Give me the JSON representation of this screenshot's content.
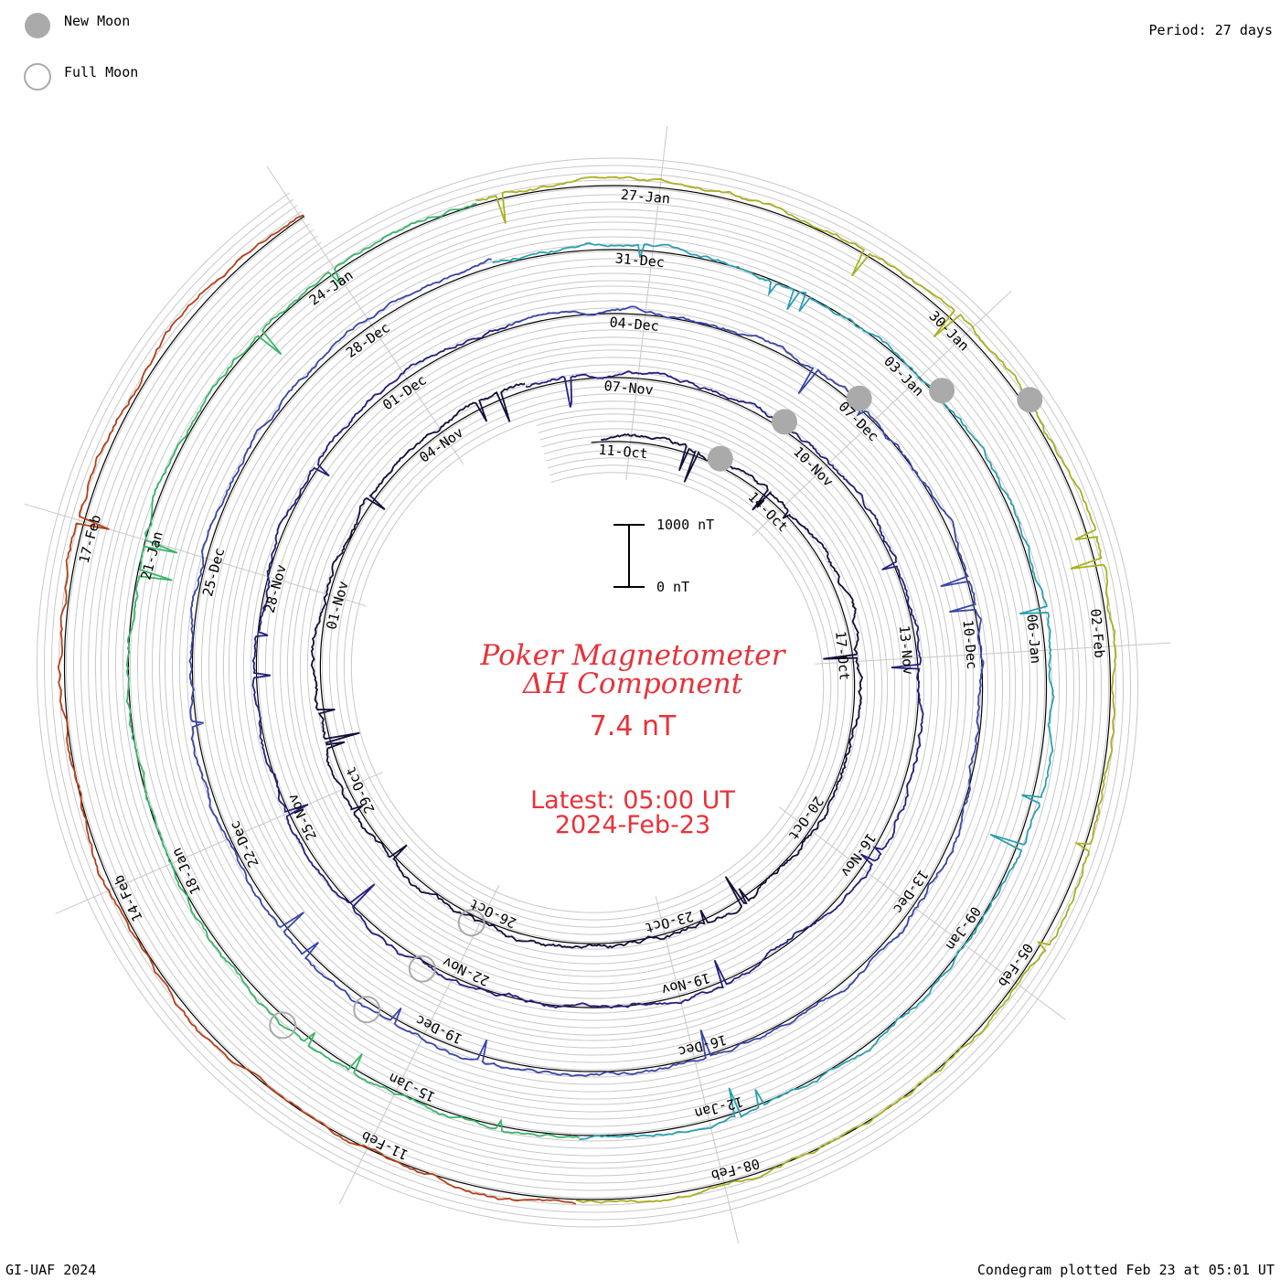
{
  "legend": {
    "new_moon": "New Moon",
    "full_moon": "Full Moon",
    "period": "Period: 27 days"
  },
  "footer": {
    "credit": "GI-UAF 2024",
    "plotted": "Condegram plotted Feb 23 at 05:01 UT"
  },
  "center": {
    "title_line1": "Poker Magnetometer",
    "title_line2": "ΔH Component",
    "value": "7.4 nT",
    "latest_line1": "Latest: 05:00 UT",
    "latest_line2": "2024-Feb-23"
  },
  "scale_bar": {
    "top_label": "1000 nT",
    "bottom_label": "0 nT"
  },
  "colors": {
    "accent_red": "#e8323a",
    "grid": "#c8c8c8",
    "moon_gray": "#aaaaaa"
  },
  "chart_data": {
    "type": "line",
    "subtype": "condegram spiral",
    "title": "Poker Magnetometer ΔH Component",
    "period_days": 27,
    "unit": "nT",
    "latest_value": 7.4,
    "series": [
      {
        "name": "",
        "start": "2023-Oct-07",
        "color": "#12103a"
      },
      {
        "name": "",
        "start": "2023-Nov-03",
        "color": "#25207e"
      },
      {
        "name": "",
        "start": "2023-Nov-30",
        "color": "#3a46a8"
      },
      {
        "name": "",
        "start": "2023-Dec-27",
        "color": "#2d9fb0"
      },
      {
        "name": "",
        "start": "2024-Jan-23",
        "color": "#3bb56a"
      },
      {
        "name": "",
        "start": "2024-Jan-23",
        "color": "#a9b021"
      },
      {
        "name": "",
        "start": "2024-Jan-27",
        "color": "#b4421a"
      }
    ],
    "date_labels": [
      [
        "11-Oct",
        "14-Oct",
        "17-Oct",
        "20-Oct",
        "23-Oct",
        "26-Oct",
        "29-Oct",
        "01-Nov",
        "04-Nov"
      ],
      [
        "07-Nov",
        "10-Nov",
        "13-Nov",
        "16-Nov",
        "19-Nov",
        "22-Nov",
        "25-Nov",
        "28-Nov",
        "01-Dec"
      ],
      [
        "04-Dec",
        "07-Dec",
        "10-Dec",
        "13-Dec",
        "16-Dec",
        "19-Dec",
        "22-Dec",
        "25-Dec",
        "28-Dec"
      ],
      [
        "31-Dec",
        "03-Jan",
        "06-Jan",
        "09-Jan",
        "12-Jan",
        "15-Jan",
        "18-Jan",
        "21-Jan",
        "24-Jan"
      ],
      [
        "27-Jan",
        "30-Jan",
        "02-Feb",
        "05-Feb",
        "08-Feb",
        "11-Feb",
        "14-Feb",
        "17-Feb"
      ]
    ],
    "new_moons": [
      "2023-Oct-14",
      "2023-Nov-13",
      "2023-Dec-12",
      "2024-Jan-11",
      "2024-Feb-09"
    ],
    "full_moons": [
      "2023-Oct-28",
      "2023-Nov-27",
      "2023-Dec-27",
      "2024-Jan-25"
    ]
  }
}
